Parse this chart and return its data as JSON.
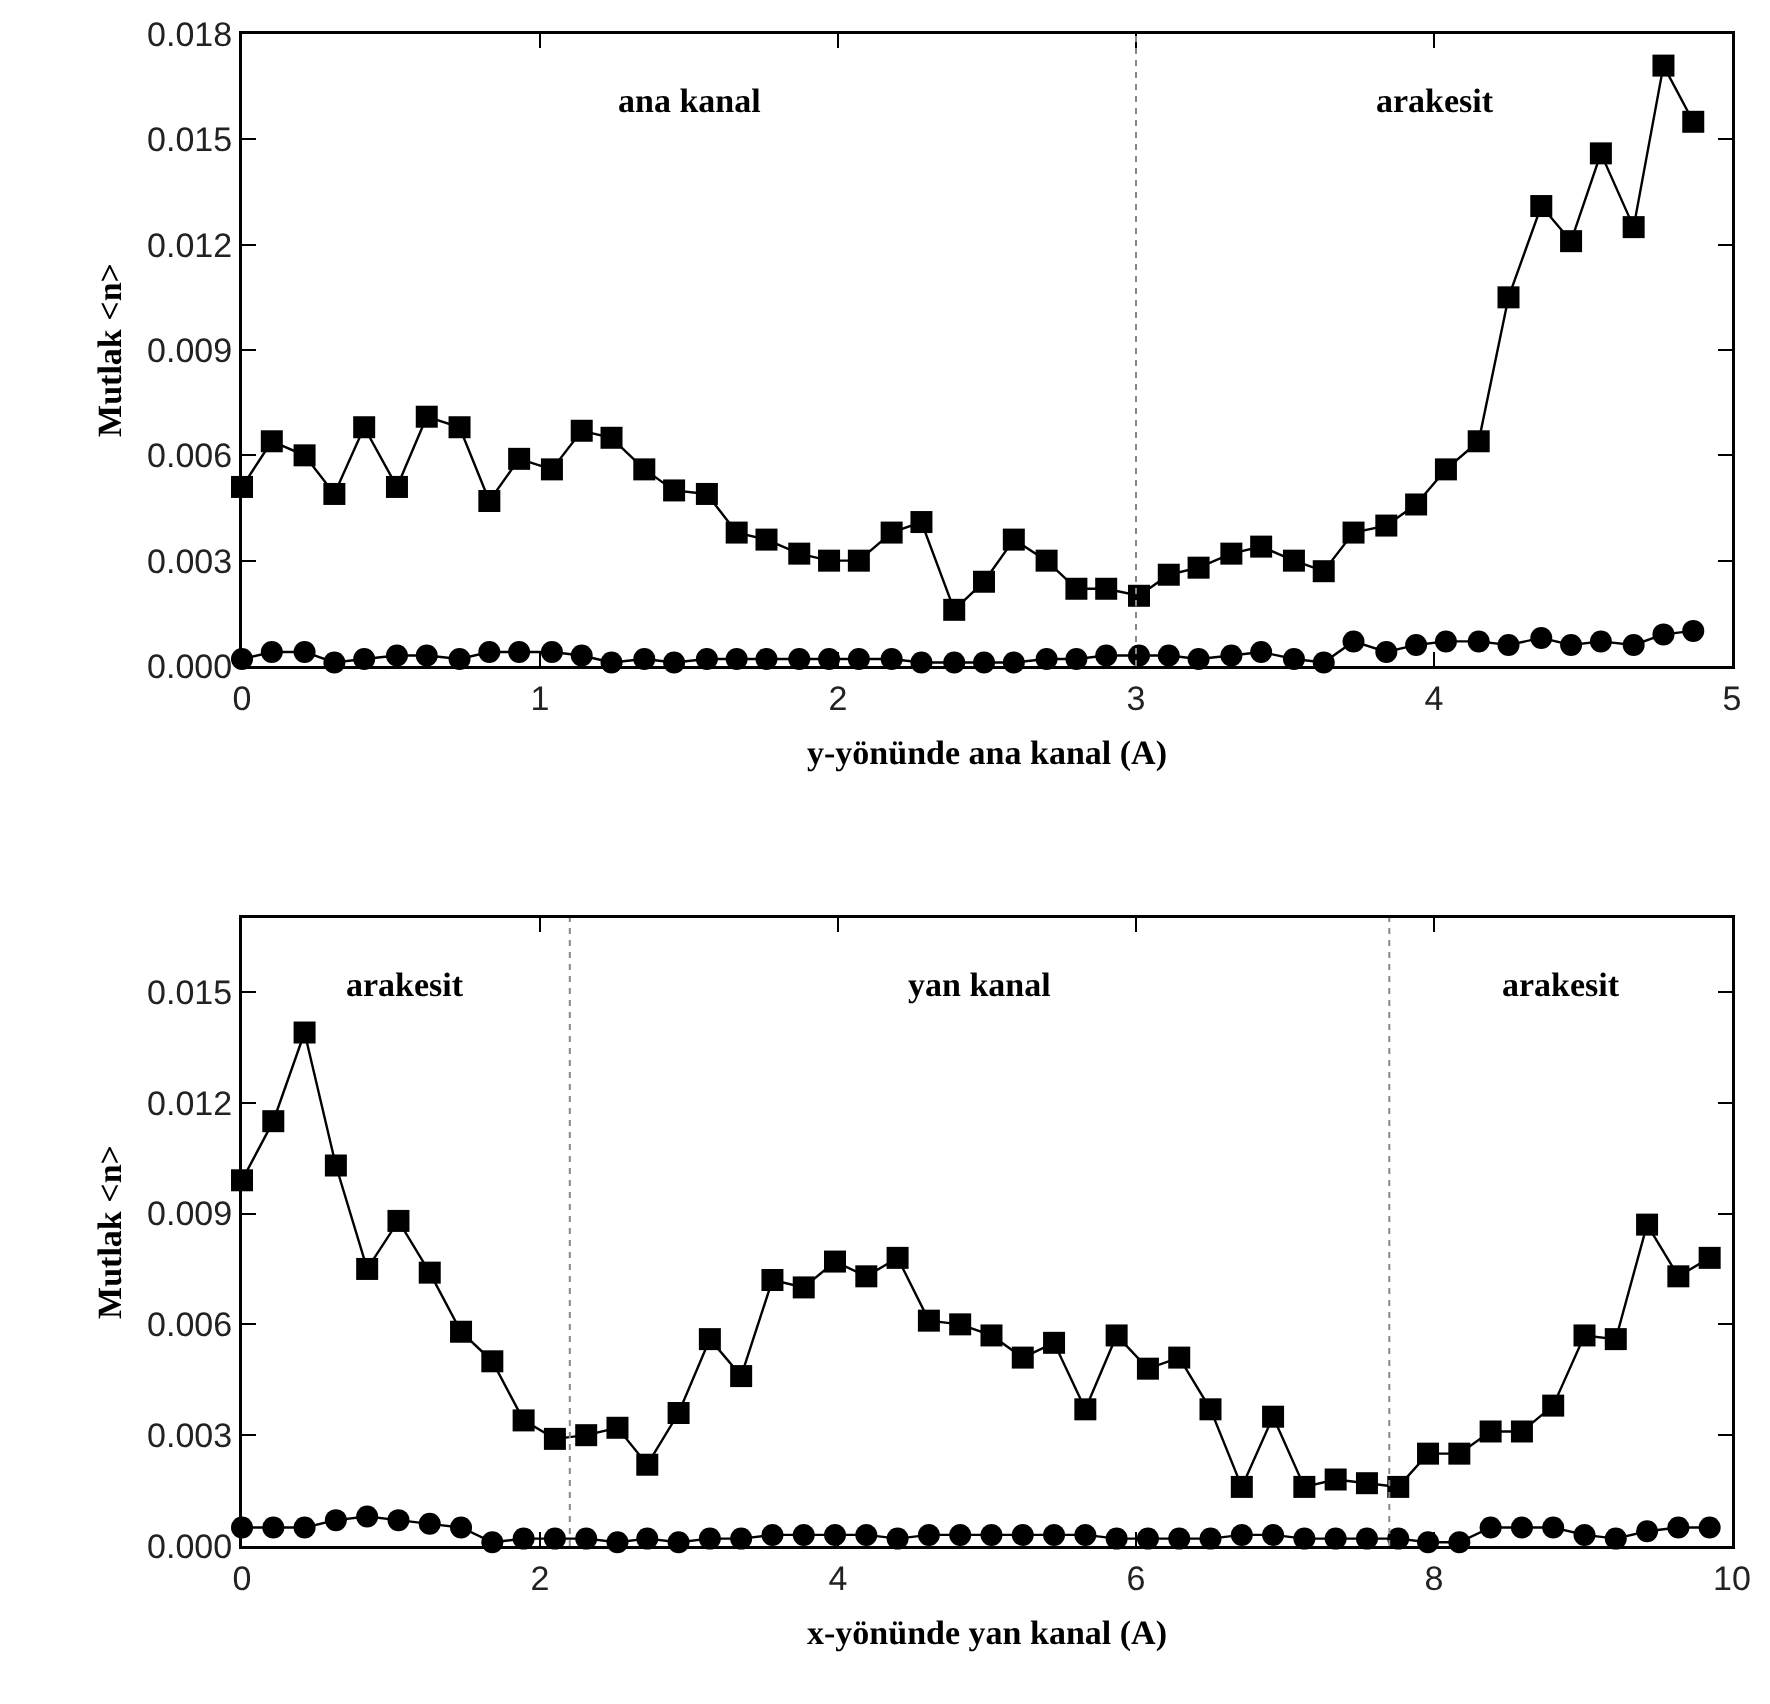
{
  "chart_data": [
    {
      "type": "line",
      "xlabel": "y-yönünde ana kanal (A)",
      "ylabel": "Mutlak <n>",
      "annotations": [
        "ana kanal",
        "arakesit"
      ],
      "xlim": [
        0,
        5
      ],
      "xticks": [
        0,
        1,
        2,
        3,
        4,
        5
      ],
      "ylim": [
        0,
        0.018
      ],
      "yticks": [
        {
          "value": 0,
          "label": "0.000"
        },
        0.003,
        0.006,
        0.009,
        0.012,
        0.015,
        0.018
      ],
      "grid": false,
      "line_style": "solid",
      "x": [
        0,
        0.1,
        0.21,
        0.31,
        0.41,
        0.52,
        0.62,
        0.73,
        0.83,
        0.93,
        1.04,
        1.14,
        1.24,
        1.35,
        1.45,
        1.56,
        1.66,
        1.76,
        1.87,
        1.97,
        2.07,
        2.18,
        2.28,
        2.39,
        2.49,
        2.59,
        2.7,
        2.8,
        2.9,
        3.01,
        3.11,
        3.21,
        3.32,
        3.42,
        3.53,
        3.63,
        3.73,
        3.84,
        3.94,
        4.04,
        4.15,
        4.25,
        4.36,
        4.46,
        4.56,
        4.67,
        4.77,
        4.87
      ],
      "ref_lines": [
        {
          "axis": "x",
          "value": 3,
          "line_style": "dotted",
          "color": "#888888"
        }
      ],
      "series": [
        {
          "color": "#000000",
          "marker": "square",
          "values": [
            0.0051,
            0.0064,
            0.006,
            0.0049,
            0.0068,
            0.0051,
            0.0071,
            0.0068,
            0.0047,
            0.0059,
            0.0056,
            0.0067,
            0.0065,
            0.0056,
            0.005,
            0.0049,
            0.0038,
            0.0036,
            0.0032,
            0.003,
            0.003,
            0.0038,
            0.0041,
            0.0016,
            0.0024,
            0.0036,
            0.003,
            0.0022,
            0.0022,
            0.002,
            0.0026,
            0.0028,
            0.0032,
            0.0034,
            0.003,
            0.0027,
            0.0038,
            0.004,
            0.0046,
            0.0056,
            0.0064,
            0.0105,
            0.0131,
            0.0121,
            0.0146,
            0.0125,
            0.0171,
            0.0155
          ]
        },
        {
          "color": "#000000",
          "marker": "circle",
          "values": [
            0.0002,
            0.0004,
            0.0004,
            0.0001,
            0.0002,
            0.0003,
            0.0003,
            0.0002,
            0.0004,
            0.0004,
            0.0004,
            0.0003,
            0.0001,
            0.0002,
            0.0001,
            0.0002,
            0.0002,
            0.0002,
            0.0002,
            0.0002,
            0.0002,
            0.0002,
            0.0001,
            0.0001,
            0.0001,
            0.0001,
            0.0002,
            0.0002,
            0.0003,
            0.0003,
            0.0003,
            0.0002,
            0.0003,
            0.0004,
            0.0002,
            0.0001,
            0.0007,
            0.0004,
            0.0006,
            0.0007,
            0.0007,
            0.0006,
            0.0008,
            0.0006,
            0.0007,
            0.0006,
            0.0009,
            0.001
          ]
        }
      ]
    },
    {
      "type": "line",
      "xlabel": "x-yönünde yan kanal (A)",
      "ylabel": "Mutlak <n>",
      "annotations": [
        "arakesit",
        "yan kanal",
        "arakesit"
      ],
      "xlim": [
        0,
        10
      ],
      "xticks": [
        0,
        2,
        4,
        6,
        8,
        10
      ],
      "ylim": [
        0,
        0.017
      ],
      "yticks": [
        {
          "value": 0,
          "label": "0.000"
        },
        0.003,
        0.006,
        0.009,
        0.012,
        0.015
      ],
      "grid": false,
      "line_style": "solid",
      "x": [
        0,
        0.21,
        0.42,
        0.63,
        0.84,
        1.05,
        1.26,
        1.47,
        1.68,
        1.89,
        2.1,
        2.31,
        2.52,
        2.72,
        2.93,
        3.14,
        3.35,
        3.56,
        3.77,
        3.98,
        4.19,
        4.4,
        4.61,
        4.82,
        5.03,
        5.24,
        5.45,
        5.66,
        5.87,
        6.08,
        6.29,
        6.5,
        6.71,
        6.92,
        7.13,
        7.34,
        7.55,
        7.76,
        7.96,
        8.17,
        8.38,
        8.59,
        8.8,
        9.01,
        9.22,
        9.43,
        9.64,
        9.85
      ],
      "ref_lines": [
        {
          "axis": "x",
          "value": 2.2,
          "line_style": "dotted",
          "color": "#888888"
        },
        {
          "axis": "x",
          "value": 7.7,
          "line_style": "dotted",
          "color": "#888888"
        }
      ],
      "series": [
        {
          "color": "#000000",
          "marker": "square",
          "values": [
            0.0099,
            0.0115,
            0.0139,
            0.0103,
            0.0075,
            0.0088,
            0.0074,
            0.0058,
            0.005,
            0.0034,
            0.0029,
            0.003,
            0.0032,
            0.0022,
            0.0036,
            0.0056,
            0.0046,
            0.0072,
            0.007,
            0.0077,
            0.0073,
            0.0078,
            0.0061,
            0.006,
            0.0057,
            0.0051,
            0.0055,
            0.0037,
            0.0057,
            0.0048,
            0.0051,
            0.0037,
            0.0016,
            0.0035,
            0.0016,
            0.0018,
            0.0017,
            0.0016,
            0.0025,
            0.0025,
            0.0031,
            0.0031,
            0.0038,
            0.0057,
            0.0056,
            0.0087,
            0.0073,
            0.0078
          ]
        },
        {
          "color": "#000000",
          "marker": "circle",
          "values": [
            0.0005,
            0.0005,
            0.0005,
            0.0007,
            0.0008,
            0.0007,
            0.0006,
            0.0005,
            0.0001,
            0.0002,
            0.0002,
            0.0002,
            0.0001,
            0.0002,
            0.0001,
            0.0002,
            0.0002,
            0.0003,
            0.0003,
            0.0003,
            0.0003,
            0.0002,
            0.0003,
            0.0003,
            0.0003,
            0.0003,
            0.0003,
            0.0003,
            0.0002,
            0.0002,
            0.0002,
            0.0002,
            0.0003,
            0.0003,
            0.0002,
            0.0002,
            0.0002,
            0.0002,
            0.0001,
            0.0001,
            0.0005,
            0.0005,
            0.0005,
            0.0003,
            0.0002,
            0.0004,
            0.0005,
            0.0005
          ]
        }
      ]
    }
  ]
}
